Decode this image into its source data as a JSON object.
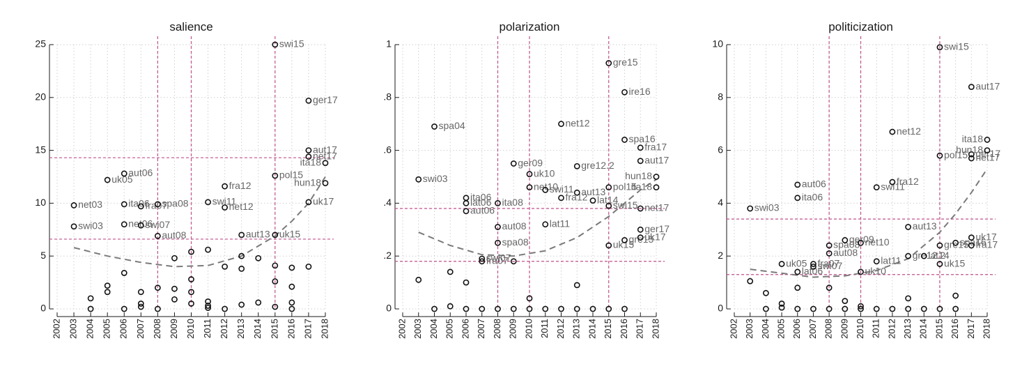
{
  "colors": {
    "ref": "#c0508a",
    "fit": "#7a7a7a",
    "point": "#111111",
    "label": "#666666"
  },
  "chart_data": [
    {
      "type": "scatter",
      "title": "salience",
      "xticks": [
        "2002",
        "2003",
        "2004",
        "2005",
        "2006",
        "2007",
        "2008",
        "2009",
        "2010",
        "2011",
        "2012",
        "2013",
        "2014",
        "2015",
        "2016",
        "2017",
        "2018"
      ],
      "xlim": [
        2002,
        2018
      ],
      "ylim": [
        0,
        25
      ],
      "yticks": [
        0,
        5,
        10,
        15,
        20,
        25
      ],
      "ytick_labels": [
        "0",
        "5",
        "10",
        "15",
        "20",
        "25"
      ],
      "vlines": [
        2008,
        2010,
        2015
      ],
      "hlines": [
        14.3,
        6.6
      ],
      "fit": [
        [
          2003,
          5.8
        ],
        [
          2005,
          5.0
        ],
        [
          2007,
          4.4
        ],
        [
          2009,
          4.0
        ],
        [
          2011,
          4.1
        ],
        [
          2013,
          5.0
        ],
        [
          2015,
          6.9
        ],
        [
          2016,
          8.3
        ],
        [
          2017,
          10.0
        ],
        [
          2018,
          12.5
        ]
      ],
      "points": [
        {
          "x": 2003,
          "y": 9.8,
          "label": "net03"
        },
        {
          "x": 2003,
          "y": 7.8,
          "label": "swi03"
        },
        {
          "x": 2004,
          "y": 1.0,
          "label": ""
        },
        {
          "x": 2004,
          "y": 0.0,
          "label": ""
        },
        {
          "x": 2005,
          "y": 12.2,
          "label": "uk05"
        },
        {
          "x": 2005,
          "y": 2.2,
          "label": ""
        },
        {
          "x": 2005,
          "y": 1.6,
          "label": ""
        },
        {
          "x": 2006,
          "y": 12.8,
          "label": "aut06"
        },
        {
          "x": 2006,
          "y": 9.9,
          "label": "ita06"
        },
        {
          "x": 2006,
          "y": 8.0,
          "label": "net06"
        },
        {
          "x": 2006,
          "y": 3.4,
          "label": ""
        },
        {
          "x": 2006,
          "y": 0.0,
          "label": ""
        },
        {
          "x": 2007,
          "y": 9.7,
          "label": "fra07"
        },
        {
          "x": 2007,
          "y": 7.9,
          "label": "swi07"
        },
        {
          "x": 2007,
          "y": 1.6,
          "label": ""
        },
        {
          "x": 2007,
          "y": 0.5,
          "label": ""
        },
        {
          "x": 2007,
          "y": 0.2,
          "label": ""
        },
        {
          "x": 2008,
          "y": 9.9,
          "label": "spa08"
        },
        {
          "x": 2008,
          "y": 6.9,
          "label": "aut08"
        },
        {
          "x": 2008,
          "y": 2.0,
          "label": ""
        },
        {
          "x": 2008,
          "y": 0.0,
          "label": ""
        },
        {
          "x": 2009,
          "y": 4.8,
          "label": ""
        },
        {
          "x": 2009,
          "y": 1.9,
          "label": ""
        },
        {
          "x": 2009,
          "y": 0.9,
          "label": ""
        },
        {
          "x": 2010,
          "y": 5.4,
          "label": ""
        },
        {
          "x": 2010,
          "y": 2.8,
          "label": ""
        },
        {
          "x": 2010,
          "y": 1.6,
          "label": ""
        },
        {
          "x": 2010,
          "y": 0.5,
          "label": ""
        },
        {
          "x": 2011,
          "y": 10.1,
          "label": "swi11"
        },
        {
          "x": 2011,
          "y": 5.6,
          "label": ""
        },
        {
          "x": 2011,
          "y": 0.7,
          "label": ""
        },
        {
          "x": 2011,
          "y": 0.3,
          "label": ""
        },
        {
          "x": 2011,
          "y": 0.1,
          "label": ""
        },
        {
          "x": 2012,
          "y": 11.6,
          "label": "fra12"
        },
        {
          "x": 2012,
          "y": 9.6,
          "label": "net12"
        },
        {
          "x": 2012,
          "y": 4.0,
          "label": ""
        },
        {
          "x": 2012,
          "y": 0.0,
          "label": ""
        },
        {
          "x": 2013,
          "y": 7.0,
          "label": "aut13"
        },
        {
          "x": 2013,
          "y": 5.0,
          "label": ""
        },
        {
          "x": 2013,
          "y": 3.8,
          "label": ""
        },
        {
          "x": 2013,
          "y": 0.4,
          "label": ""
        },
        {
          "x": 2014,
          "y": 4.8,
          "label": ""
        },
        {
          "x": 2014,
          "y": 0.6,
          "label": ""
        },
        {
          "x": 2015,
          "y": 25.0,
          "label": "swi15"
        },
        {
          "x": 2015,
          "y": 12.6,
          "label": "pol15"
        },
        {
          "x": 2015,
          "y": 7.0,
          "label": "uk15"
        },
        {
          "x": 2015,
          "y": 4.1,
          "label": ""
        },
        {
          "x": 2015,
          "y": 2.6,
          "label": ""
        },
        {
          "x": 2015,
          "y": 0.2,
          "label": ""
        },
        {
          "x": 2016,
          "y": 3.9,
          "label": ""
        },
        {
          "x": 2016,
          "y": 2.1,
          "label": ""
        },
        {
          "x": 2016,
          "y": 0.6,
          "label": ""
        },
        {
          "x": 2016,
          "y": 0.0,
          "label": ""
        },
        {
          "x": 2017,
          "y": 19.7,
          "label": "ger17"
        },
        {
          "x": 2017,
          "y": 15.0,
          "label": "aut17"
        },
        {
          "x": 2017,
          "y": 14.4,
          "label": "net17"
        },
        {
          "x": 2017,
          "y": 10.1,
          "label": "uk17"
        },
        {
          "x": 2017,
          "y": 4.0,
          "label": ""
        },
        {
          "x": 2018,
          "y": 13.8,
          "label": "ita18"
        },
        {
          "x": 2018,
          "y": 11.9,
          "label": "hun18"
        }
      ]
    },
    {
      "type": "scatter",
      "title": "polarization",
      "xticks": [
        "2002",
        "2003",
        "2004",
        "2005",
        "2006",
        "2007",
        "2008",
        "2009",
        "2010",
        "2011",
        "2012",
        "2013",
        "2014",
        "2015",
        "2016",
        "2017",
        "2018"
      ],
      "xlim": [
        2002,
        2018
      ],
      "ylim": [
        0,
        1
      ],
      "yticks": [
        0,
        0.2,
        0.4,
        0.6,
        0.8,
        1
      ],
      "ytick_labels": [
        "0",
        ".2",
        ".4",
        ".6",
        ".8",
        "1"
      ],
      "vlines": [
        2008,
        2010,
        2015
      ],
      "hlines": [
        0.38,
        0.18
      ],
      "fit": [
        [
          2003,
          0.29
        ],
        [
          2005,
          0.24
        ],
        [
          2007,
          0.205
        ],
        [
          2009,
          0.2
        ],
        [
          2011,
          0.22
        ],
        [
          2013,
          0.27
        ],
        [
          2015,
          0.35
        ],
        [
          2016,
          0.4
        ],
        [
          2017,
          0.45
        ],
        [
          2018,
          0.49
        ]
      ],
      "points": [
        {
          "x": 2003,
          "y": 0.49,
          "label": "swi03"
        },
        {
          "x": 2003,
          "y": 0.11,
          "label": ""
        },
        {
          "x": 2004,
          "y": 0.69,
          "label": "spa04"
        },
        {
          "x": 2004,
          "y": 0.0,
          "label": ""
        },
        {
          "x": 2005,
          "y": 0.14,
          "label": ""
        },
        {
          "x": 2005,
          "y": 0.01,
          "label": ""
        },
        {
          "x": 2006,
          "y": 0.42,
          "label": "ita06"
        },
        {
          "x": 2006,
          "y": 0.4,
          "label": "lat06"
        },
        {
          "x": 2006,
          "y": 0.37,
          "label": "aut06"
        },
        {
          "x": 2006,
          "y": 0.1,
          "label": ""
        },
        {
          "x": 2006,
          "y": 0.0,
          "label": ""
        },
        {
          "x": 2007,
          "y": 0.19,
          "label": "swi07"
        },
        {
          "x": 2007,
          "y": 0.18,
          "label": "fra07"
        },
        {
          "x": 2007,
          "y": 0.0,
          "label": ""
        },
        {
          "x": 2008,
          "y": 0.4,
          "label": "ita08"
        },
        {
          "x": 2008,
          "y": 0.31,
          "label": "aut08"
        },
        {
          "x": 2008,
          "y": 0.25,
          "label": "spa08"
        },
        {
          "x": 2008,
          "y": 0.0,
          "label": ""
        },
        {
          "x": 2009,
          "y": 0.55,
          "label": "ger09"
        },
        {
          "x": 2009,
          "y": 0.18,
          "label": ""
        },
        {
          "x": 2009,
          "y": 0.0,
          "label": ""
        },
        {
          "x": 2010,
          "y": 0.51,
          "label": "uk10"
        },
        {
          "x": 2010,
          "y": 0.46,
          "label": "net10"
        },
        {
          "x": 2010,
          "y": 0.04,
          "label": ""
        },
        {
          "x": 2010,
          "y": 0.0,
          "label": ""
        },
        {
          "x": 2011,
          "y": 0.45,
          "label": "swi11"
        },
        {
          "x": 2011,
          "y": 0.32,
          "label": "lat11"
        },
        {
          "x": 2011,
          "y": 0.0,
          "label": ""
        },
        {
          "x": 2012,
          "y": 0.7,
          "label": "net12"
        },
        {
          "x": 2012,
          "y": 0.42,
          "label": "fra12"
        },
        {
          "x": 2012,
          "y": 0.0,
          "label": ""
        },
        {
          "x": 2013,
          "y": 0.54,
          "label": "gre12.2"
        },
        {
          "x": 2013,
          "y": 0.44,
          "label": "aut13"
        },
        {
          "x": 2013,
          "y": 0.09,
          "label": ""
        },
        {
          "x": 2013,
          "y": 0.0,
          "label": ""
        },
        {
          "x": 2014,
          "y": 0.41,
          "label": "lat14"
        },
        {
          "x": 2014,
          "y": 0.0,
          "label": ""
        },
        {
          "x": 2015,
          "y": 0.93,
          "label": "gre15"
        },
        {
          "x": 2015,
          "y": 0.46,
          "label": "pol15"
        },
        {
          "x": 2015,
          "y": 0.39,
          "label": "swi15"
        },
        {
          "x": 2015,
          "y": 0.24,
          "label": "uk15"
        },
        {
          "x": 2015,
          "y": 0.0,
          "label": ""
        },
        {
          "x": 2016,
          "y": 0.82,
          "label": "ire16"
        },
        {
          "x": 2016,
          "y": 0.64,
          "label": "spa16"
        },
        {
          "x": 2016,
          "y": 0.26,
          "label": "gre15"
        },
        {
          "x": 2016,
          "y": 0.0,
          "label": ""
        },
        {
          "x": 2017,
          "y": 0.61,
          "label": "fra17"
        },
        {
          "x": 2017,
          "y": 0.56,
          "label": "aut17"
        },
        {
          "x": 2017,
          "y": 0.38,
          "label": "net17"
        },
        {
          "x": 2017,
          "y": 0.3,
          "label": "ger17"
        },
        {
          "x": 2017,
          "y": 0.27,
          "label": "uk17"
        },
        {
          "x": 2018,
          "y": 0.5,
          "label": "hun18"
        },
        {
          "x": 2018,
          "y": 0.46,
          "label": "ita18"
        }
      ]
    },
    {
      "type": "scatter",
      "title": "politicization",
      "xticks": [
        "2002",
        "2003",
        "2004",
        "2005",
        "2006",
        "2007",
        "2008",
        "2009",
        "2010",
        "2011",
        "2012",
        "2013",
        "2014",
        "2015",
        "2016",
        "2017",
        "2018"
      ],
      "xlim": [
        2002,
        2018
      ],
      "ylim": [
        0,
        10
      ],
      "yticks": [
        0,
        2,
        4,
        6,
        8,
        10
      ],
      "ytick_labels": [
        "0",
        "2",
        "4",
        "6",
        "8",
        "10"
      ],
      "vlines": [
        2008,
        2010,
        2015
      ],
      "hlines": [
        3.4,
        1.3
      ],
      "fit": [
        [
          2003,
          1.5
        ],
        [
          2005,
          1.35
        ],
        [
          2007,
          1.2
        ],
        [
          2009,
          1.25
        ],
        [
          2011,
          1.45
        ],
        [
          2013,
          1.9
        ],
        [
          2015,
          2.9
        ],
        [
          2016,
          3.6
        ],
        [
          2017,
          4.4
        ],
        [
          2018,
          5.3
        ]
      ],
      "points": [
        {
          "x": 2003,
          "y": 3.8,
          "label": "swi03"
        },
        {
          "x": 2003,
          "y": 1.05,
          "label": ""
        },
        {
          "x": 2004,
          "y": 0.6,
          "label": ""
        },
        {
          "x": 2004,
          "y": 0.0,
          "label": ""
        },
        {
          "x": 2005,
          "y": 1.7,
          "label": "uk05"
        },
        {
          "x": 2005,
          "y": 0.2,
          "label": ""
        },
        {
          "x": 2005,
          "y": 0.05,
          "label": ""
        },
        {
          "x": 2006,
          "y": 4.7,
          "label": "aut06"
        },
        {
          "x": 2006,
          "y": 4.2,
          "label": "ita06"
        },
        {
          "x": 2006,
          "y": 1.4,
          "label": "lat06"
        },
        {
          "x": 2006,
          "y": 0.8,
          "label": ""
        },
        {
          "x": 2006,
          "y": 0.0,
          "label": ""
        },
        {
          "x": 2007,
          "y": 1.7,
          "label": "fra07"
        },
        {
          "x": 2007,
          "y": 1.6,
          "label": "swi07"
        },
        {
          "x": 2007,
          "y": 0.0,
          "label": ""
        },
        {
          "x": 2008,
          "y": 2.4,
          "label": "spa08"
        },
        {
          "x": 2008,
          "y": 2.1,
          "label": "aut08"
        },
        {
          "x": 2008,
          "y": 0.8,
          "label": ""
        },
        {
          "x": 2008,
          "y": 0.0,
          "label": ""
        },
        {
          "x": 2009,
          "y": 2.6,
          "label": "ger09"
        },
        {
          "x": 2009,
          "y": 0.3,
          "label": ""
        },
        {
          "x": 2009,
          "y": 0.0,
          "label": ""
        },
        {
          "x": 2010,
          "y": 2.5,
          "label": "net10"
        },
        {
          "x": 2010,
          "y": 1.4,
          "label": "uk10"
        },
        {
          "x": 2010,
          "y": 0.1,
          "label": ""
        },
        {
          "x": 2010,
          "y": 0.0,
          "label": ""
        },
        {
          "x": 2011,
          "y": 4.6,
          "label": "swi11"
        },
        {
          "x": 2011,
          "y": 1.8,
          "label": "lat11"
        },
        {
          "x": 2011,
          "y": 0.0,
          "label": ""
        },
        {
          "x": 2012,
          "y": 6.7,
          "label": "net12"
        },
        {
          "x": 2012,
          "y": 4.8,
          "label": "fra12"
        },
        {
          "x": 2012,
          "y": 0.0,
          "label": ""
        },
        {
          "x": 2013,
          "y": 3.1,
          "label": "aut13"
        },
        {
          "x": 2013,
          "y": 2.0,
          "label": "gre12.2"
        },
        {
          "x": 2013,
          "y": 0.4,
          "label": ""
        },
        {
          "x": 2013,
          "y": 0.0,
          "label": ""
        },
        {
          "x": 2014,
          "y": 2.0,
          "label": "lat14"
        },
        {
          "x": 2014,
          "y": 0.0,
          "label": ""
        },
        {
          "x": 2015,
          "y": 9.9,
          "label": "swi15"
        },
        {
          "x": 2015,
          "y": 5.8,
          "label": "pol15"
        },
        {
          "x": 2015,
          "y": 2.4,
          "label": "gre15"
        },
        {
          "x": 2015,
          "y": 1.7,
          "label": "uk15"
        },
        {
          "x": 2015,
          "y": 0.0,
          "label": ""
        },
        {
          "x": 2016,
          "y": 2.5,
          "label": "spa16"
        },
        {
          "x": 2016,
          "y": 0.5,
          "label": ""
        },
        {
          "x": 2016,
          "y": 0.0,
          "label": ""
        },
        {
          "x": 2017,
          "y": 8.4,
          "label": "aut17"
        },
        {
          "x": 2017,
          "y": 5.85,
          "label": "ger17"
        },
        {
          "x": 2017,
          "y": 5.7,
          "label": "net17"
        },
        {
          "x": 2017,
          "y": 2.7,
          "label": "uk17"
        },
        {
          "x": 2017,
          "y": 2.4,
          "label": "fra17"
        },
        {
          "x": 2018,
          "y": 6.4,
          "label": "ita18"
        },
        {
          "x": 2018,
          "y": 6.0,
          "label": "hun18"
        }
      ]
    }
  ]
}
